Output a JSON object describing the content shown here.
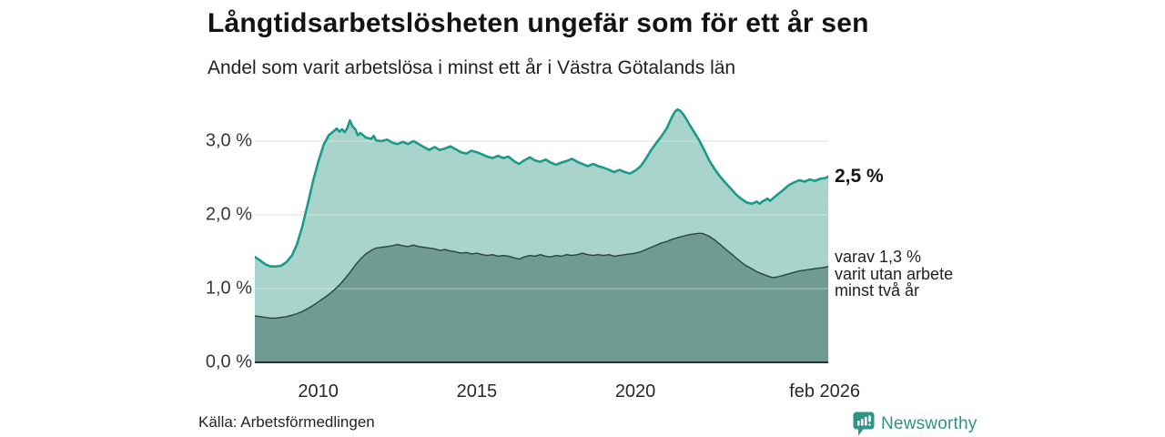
{
  "header": {
    "title": "Långtidsarbetslösheten ungefär som för ett år sen",
    "subtitle": "Andel som varit arbetslösa i minst ett år i Västra Götalands län"
  },
  "annotations": {
    "total_end_label": "2,5 %",
    "subset_end_label": "varav 1,3 %\nvarit utan arbete\nminst två år"
  },
  "footer": {
    "source": "Källa: Arbetsförmedlingen",
    "brand": "Newsworthy"
  },
  "colors": {
    "total_line": "#1a9a8a",
    "total_fill": "#a8d4cb",
    "subset_line": "#26453f",
    "subset_fill": "#6f9b93",
    "gridline": "#c9c9c9",
    "gridline_overlay": "rgba(255,255,255,0.42)",
    "axis_line": "#2f3133",
    "brand_teal": "#2e9488"
  },
  "chart_data": {
    "type": "area",
    "title": "Långtidsarbetslösheten ungefär som för ett år sen",
    "subtitle": "Andel som varit arbetslösa i minst ett år i Västra Götalands län",
    "x_domain": [
      2008.0,
      2026.083
    ],
    "y_domain": [
      0,
      3.6
    ],
    "grid": true,
    "y_ticks": [
      {
        "v": 0,
        "label": "0,0 %"
      },
      {
        "v": 1,
        "label": "1,0 %"
      },
      {
        "v": 2,
        "label": "2,0 %"
      },
      {
        "v": 3,
        "label": "3,0 %"
      }
    ],
    "x_ticks": [
      {
        "t": 2010,
        "label": "2010"
      },
      {
        "t": 2015,
        "label": "2015"
      },
      {
        "t": 2020,
        "label": "2020"
      },
      {
        "t": 2025.97,
        "label": "feb 2026"
      }
    ],
    "series": [
      {
        "name": "arbetslösa minst ett år",
        "end_value": "2,5 %",
        "points": [
          [
            2008.0,
            1.43
          ],
          [
            2008.17,
            1.38
          ],
          [
            2008.33,
            1.33
          ],
          [
            2008.5,
            1.3
          ],
          [
            2008.67,
            1.3
          ],
          [
            2008.83,
            1.31
          ],
          [
            2009.0,
            1.36
          ],
          [
            2009.17,
            1.45
          ],
          [
            2009.33,
            1.6
          ],
          [
            2009.5,
            1.85
          ],
          [
            2009.67,
            2.15
          ],
          [
            2009.83,
            2.45
          ],
          [
            2010.0,
            2.72
          ],
          [
            2010.17,
            2.95
          ],
          [
            2010.33,
            3.08
          ],
          [
            2010.5,
            3.14
          ],
          [
            2010.58,
            3.17
          ],
          [
            2010.67,
            3.13
          ],
          [
            2010.75,
            3.16
          ],
          [
            2010.83,
            3.12
          ],
          [
            2010.92,
            3.18
          ],
          [
            2011.0,
            3.28
          ],
          [
            2011.08,
            3.2
          ],
          [
            2011.17,
            3.16
          ],
          [
            2011.25,
            3.08
          ],
          [
            2011.33,
            3.11
          ],
          [
            2011.5,
            3.05
          ],
          [
            2011.67,
            3.03
          ],
          [
            2011.75,
            3.07
          ],
          [
            2011.83,
            3.01
          ],
          [
            2012.0,
            3.0
          ],
          [
            2012.17,
            3.02
          ],
          [
            2012.33,
            2.98
          ],
          [
            2012.5,
            2.96
          ],
          [
            2012.67,
            2.99
          ],
          [
            2012.83,
            2.96
          ],
          [
            2013.0,
            3.0
          ],
          [
            2013.17,
            2.96
          ],
          [
            2013.33,
            2.92
          ],
          [
            2013.5,
            2.88
          ],
          [
            2013.67,
            2.92
          ],
          [
            2013.83,
            2.88
          ],
          [
            2014.0,
            2.9
          ],
          [
            2014.17,
            2.93
          ],
          [
            2014.33,
            2.89
          ],
          [
            2014.5,
            2.85
          ],
          [
            2014.67,
            2.83
          ],
          [
            2014.83,
            2.87
          ],
          [
            2015.0,
            2.85
          ],
          [
            2015.17,
            2.82
          ],
          [
            2015.33,
            2.79
          ],
          [
            2015.5,
            2.77
          ],
          [
            2015.67,
            2.8
          ],
          [
            2015.83,
            2.77
          ],
          [
            2016.0,
            2.79
          ],
          [
            2016.17,
            2.73
          ],
          [
            2016.33,
            2.69
          ],
          [
            2016.5,
            2.74
          ],
          [
            2016.67,
            2.78
          ],
          [
            2016.83,
            2.74
          ],
          [
            2017.0,
            2.72
          ],
          [
            2017.17,
            2.75
          ],
          [
            2017.33,
            2.71
          ],
          [
            2017.5,
            2.68
          ],
          [
            2017.67,
            2.71
          ],
          [
            2017.83,
            2.73
          ],
          [
            2018.0,
            2.76
          ],
          [
            2018.17,
            2.72
          ],
          [
            2018.33,
            2.69
          ],
          [
            2018.5,
            2.66
          ],
          [
            2018.67,
            2.69
          ],
          [
            2018.83,
            2.66
          ],
          [
            2019.0,
            2.64
          ],
          [
            2019.17,
            2.61
          ],
          [
            2019.33,
            2.58
          ],
          [
            2019.5,
            2.61
          ],
          [
            2019.67,
            2.58
          ],
          [
            2019.83,
            2.56
          ],
          [
            2020.0,
            2.6
          ],
          [
            2020.17,
            2.66
          ],
          [
            2020.33,
            2.76
          ],
          [
            2020.5,
            2.88
          ],
          [
            2020.67,
            2.98
          ],
          [
            2020.83,
            3.07
          ],
          [
            2021.0,
            3.18
          ],
          [
            2021.08,
            3.26
          ],
          [
            2021.17,
            3.34
          ],
          [
            2021.25,
            3.4
          ],
          [
            2021.33,
            3.43
          ],
          [
            2021.42,
            3.41
          ],
          [
            2021.5,
            3.37
          ],
          [
            2021.58,
            3.32
          ],
          [
            2021.67,
            3.25
          ],
          [
            2021.83,
            3.14
          ],
          [
            2022.0,
            3.02
          ],
          [
            2022.17,
            2.88
          ],
          [
            2022.33,
            2.74
          ],
          [
            2022.5,
            2.62
          ],
          [
            2022.67,
            2.52
          ],
          [
            2022.83,
            2.44
          ],
          [
            2023.0,
            2.36
          ],
          [
            2023.17,
            2.28
          ],
          [
            2023.33,
            2.22
          ],
          [
            2023.5,
            2.17
          ],
          [
            2023.67,
            2.15
          ],
          [
            2023.83,
            2.18
          ],
          [
            2023.92,
            2.15
          ],
          [
            2024.0,
            2.18
          ],
          [
            2024.17,
            2.22
          ],
          [
            2024.25,
            2.19
          ],
          [
            2024.33,
            2.22
          ],
          [
            2024.5,
            2.28
          ],
          [
            2024.67,
            2.34
          ],
          [
            2024.83,
            2.4
          ],
          [
            2025.0,
            2.44
          ],
          [
            2025.17,
            2.47
          ],
          [
            2025.33,
            2.45
          ],
          [
            2025.5,
            2.48
          ],
          [
            2025.67,
            2.46
          ],
          [
            2025.83,
            2.49
          ],
          [
            2026.0,
            2.5
          ],
          [
            2026.083,
            2.52
          ]
        ]
      },
      {
        "name": "varav utan arbete minst två år",
        "end_value": "1,3 %",
        "points": [
          [
            2008.0,
            0.63
          ],
          [
            2008.17,
            0.62
          ],
          [
            2008.33,
            0.61
          ],
          [
            2008.5,
            0.6
          ],
          [
            2008.67,
            0.6
          ],
          [
            2008.83,
            0.61
          ],
          [
            2009.0,
            0.62
          ],
          [
            2009.17,
            0.64
          ],
          [
            2009.33,
            0.66
          ],
          [
            2009.5,
            0.69
          ],
          [
            2009.67,
            0.73
          ],
          [
            2009.83,
            0.77
          ],
          [
            2010.0,
            0.82
          ],
          [
            2010.17,
            0.87
          ],
          [
            2010.33,
            0.92
          ],
          [
            2010.5,
            0.98
          ],
          [
            2010.67,
            1.05
          ],
          [
            2010.83,
            1.13
          ],
          [
            2011.0,
            1.22
          ],
          [
            2011.17,
            1.32
          ],
          [
            2011.33,
            1.4
          ],
          [
            2011.5,
            1.47
          ],
          [
            2011.67,
            1.52
          ],
          [
            2011.83,
            1.55
          ],
          [
            2012.0,
            1.56
          ],
          [
            2012.17,
            1.57
          ],
          [
            2012.33,
            1.58
          ],
          [
            2012.5,
            1.6
          ],
          [
            2012.67,
            1.58
          ],
          [
            2012.83,
            1.57
          ],
          [
            2013.0,
            1.59
          ],
          [
            2013.17,
            1.57
          ],
          [
            2013.33,
            1.56
          ],
          [
            2013.5,
            1.55
          ],
          [
            2013.67,
            1.54
          ],
          [
            2013.83,
            1.52
          ],
          [
            2014.0,
            1.53
          ],
          [
            2014.17,
            1.51
          ],
          [
            2014.33,
            1.5
          ],
          [
            2014.5,
            1.48
          ],
          [
            2014.67,
            1.49
          ],
          [
            2014.83,
            1.47
          ],
          [
            2015.0,
            1.48
          ],
          [
            2015.17,
            1.46
          ],
          [
            2015.33,
            1.45
          ],
          [
            2015.5,
            1.46
          ],
          [
            2015.67,
            1.44
          ],
          [
            2015.83,
            1.45
          ],
          [
            2016.0,
            1.44
          ],
          [
            2016.17,
            1.42
          ],
          [
            2016.33,
            1.4
          ],
          [
            2016.5,
            1.43
          ],
          [
            2016.67,
            1.45
          ],
          [
            2016.83,
            1.44
          ],
          [
            2017.0,
            1.46
          ],
          [
            2017.17,
            1.44
          ],
          [
            2017.33,
            1.43
          ],
          [
            2017.5,
            1.45
          ],
          [
            2017.67,
            1.44
          ],
          [
            2017.83,
            1.46
          ],
          [
            2018.0,
            1.45
          ],
          [
            2018.17,
            1.46
          ],
          [
            2018.33,
            1.48
          ],
          [
            2018.5,
            1.46
          ],
          [
            2018.67,
            1.45
          ],
          [
            2018.83,
            1.46
          ],
          [
            2019.0,
            1.45
          ],
          [
            2019.17,
            1.46
          ],
          [
            2019.33,
            1.44
          ],
          [
            2019.5,
            1.45
          ],
          [
            2019.67,
            1.46
          ],
          [
            2019.83,
            1.47
          ],
          [
            2020.0,
            1.48
          ],
          [
            2020.17,
            1.5
          ],
          [
            2020.33,
            1.53
          ],
          [
            2020.5,
            1.56
          ],
          [
            2020.67,
            1.59
          ],
          [
            2020.83,
            1.62
          ],
          [
            2021.0,
            1.64
          ],
          [
            2021.17,
            1.67
          ],
          [
            2021.33,
            1.69
          ],
          [
            2021.5,
            1.71
          ],
          [
            2021.67,
            1.73
          ],
          [
            2021.83,
            1.74
          ],
          [
            2022.0,
            1.75
          ],
          [
            2022.08,
            1.75
          ],
          [
            2022.17,
            1.74
          ],
          [
            2022.33,
            1.71
          ],
          [
            2022.5,
            1.66
          ],
          [
            2022.67,
            1.6
          ],
          [
            2022.83,
            1.54
          ],
          [
            2023.0,
            1.48
          ],
          [
            2023.17,
            1.42
          ],
          [
            2023.33,
            1.36
          ],
          [
            2023.5,
            1.31
          ],
          [
            2023.67,
            1.27
          ],
          [
            2023.83,
            1.23
          ],
          [
            2024.0,
            1.2
          ],
          [
            2024.17,
            1.17
          ],
          [
            2024.33,
            1.15
          ],
          [
            2024.5,
            1.16
          ],
          [
            2024.67,
            1.18
          ],
          [
            2024.83,
            1.2
          ],
          [
            2025.0,
            1.22
          ],
          [
            2025.17,
            1.24
          ],
          [
            2025.33,
            1.25
          ],
          [
            2025.5,
            1.26
          ],
          [
            2025.67,
            1.27
          ],
          [
            2025.83,
            1.28
          ],
          [
            2026.0,
            1.29
          ],
          [
            2026.083,
            1.3
          ]
        ]
      }
    ]
  }
}
